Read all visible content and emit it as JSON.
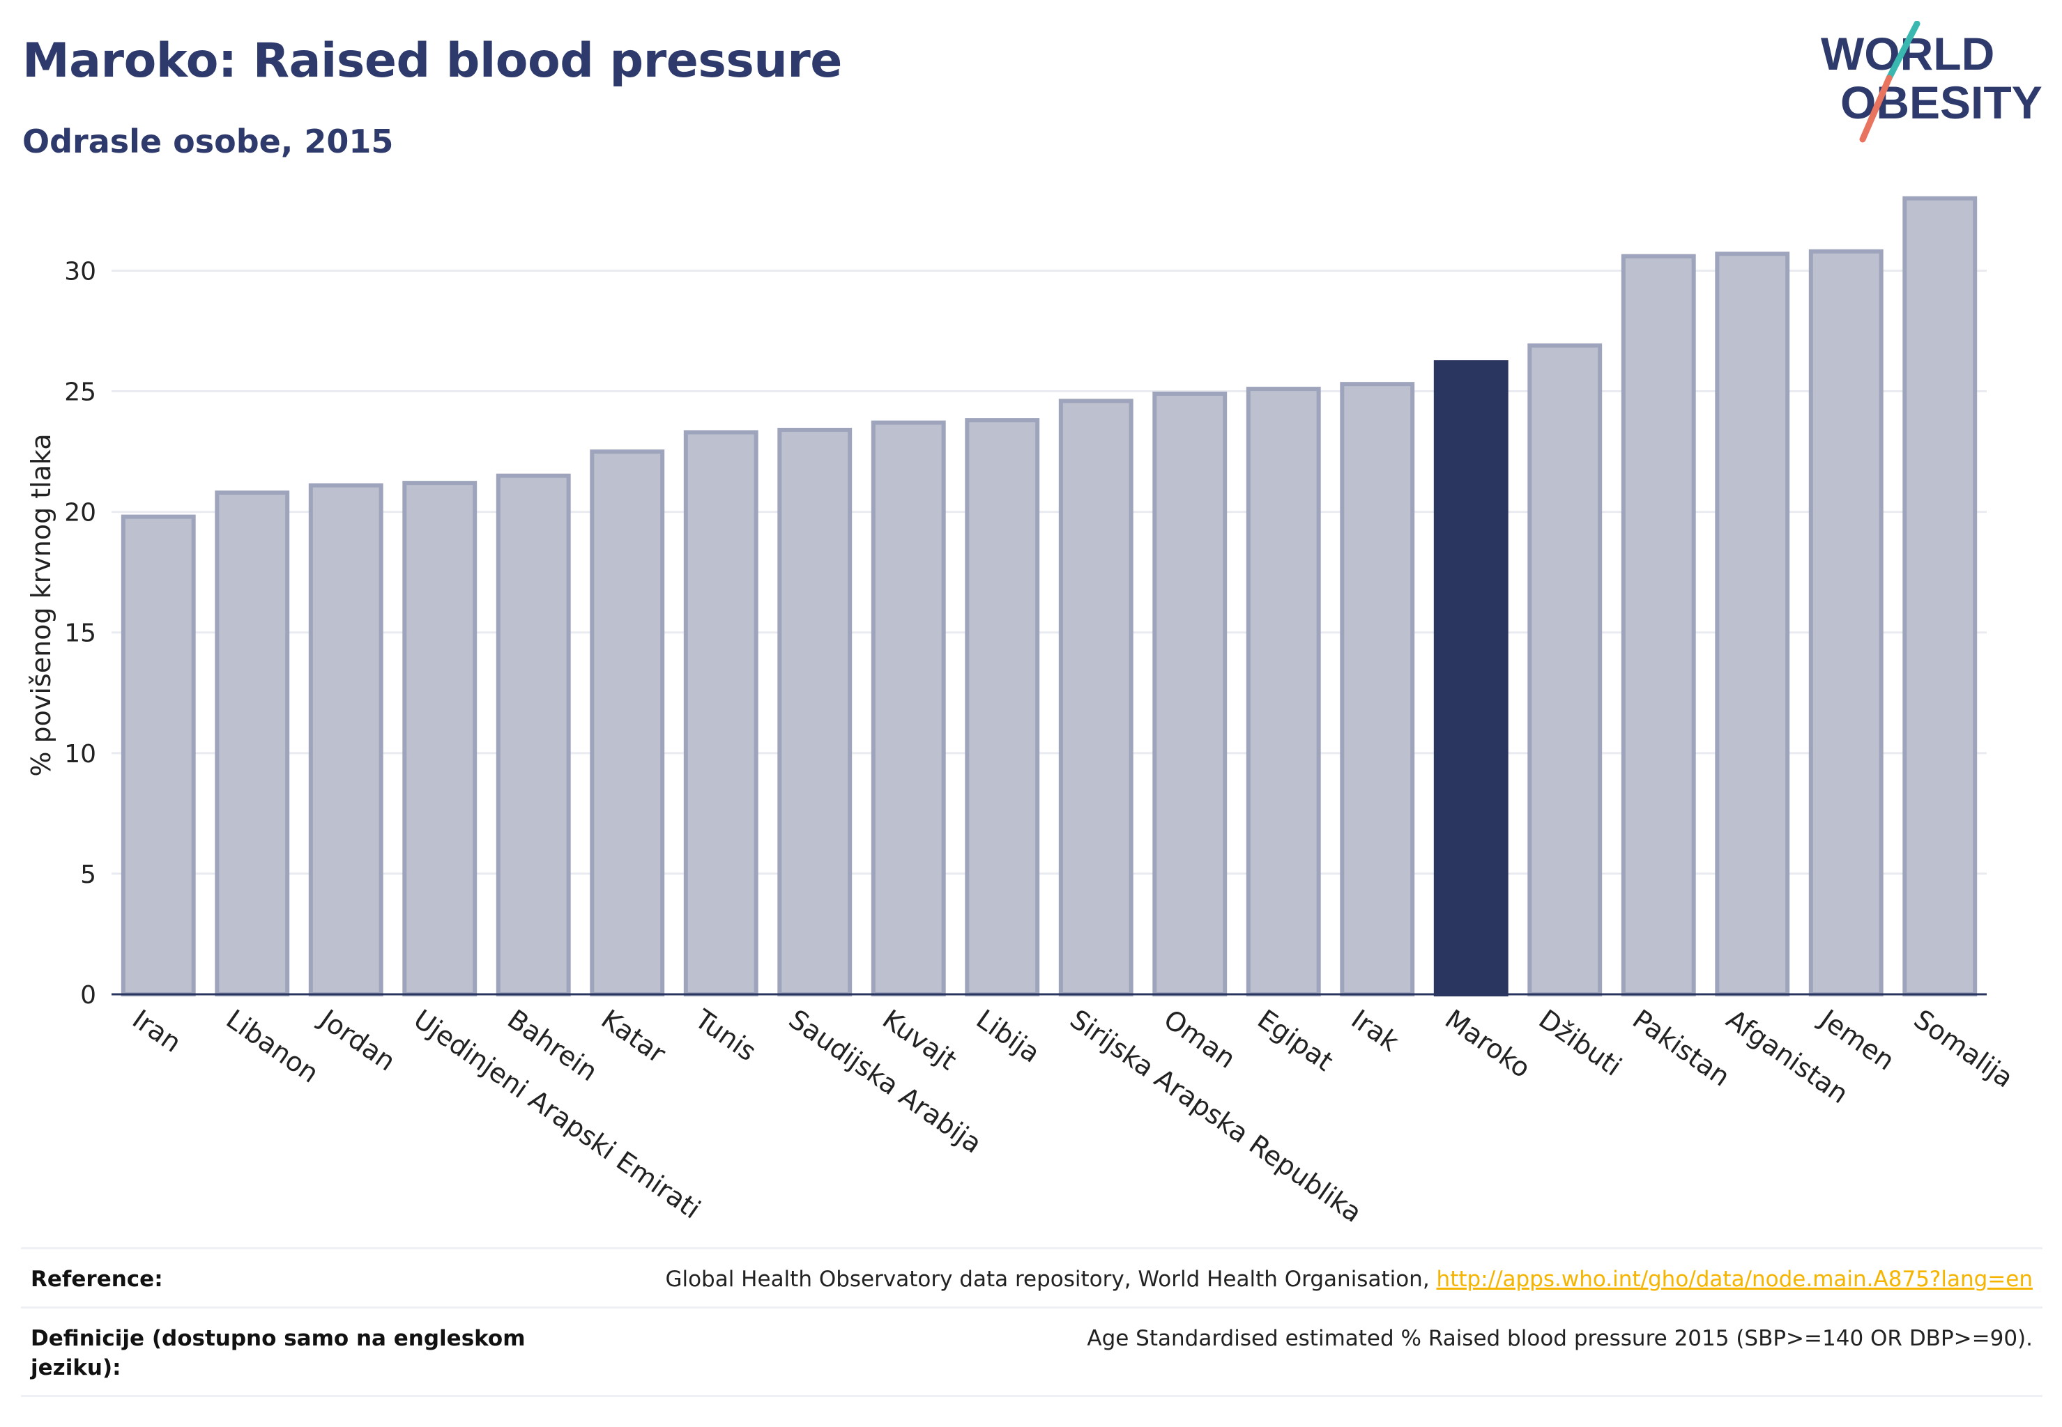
{
  "header": {
    "title": "Maroko: Raised blood pressure",
    "subtitle": "Odrasle osobe, 2015"
  },
  "logo": {
    "line1": "WORLD",
    "line2": "OBESITY",
    "colors": {
      "text": "#2d3a6b",
      "teal": "#3ab8b0",
      "coral": "#e8735f"
    }
  },
  "chart_data": {
    "type": "bar",
    "title": "Maroko: Raised blood pressure",
    "subtitle": "Odrasle osobe, 2015",
    "xlabel": "",
    "ylabel": "% povišenog krvnog tlaka",
    "ylim": [
      0,
      34
    ],
    "yticks": [
      0,
      5,
      10,
      15,
      20,
      25,
      30
    ],
    "grid": true,
    "highlight": "Maroko",
    "colors": {
      "bar": "#bcc0cf",
      "bar_border": "#9ea4bb",
      "highlight": "#2a3560",
      "grid": "#e9ebf1",
      "axis": "#2a3560"
    },
    "categories": [
      "Iran",
      "Libanon",
      "Jordan",
      "Ujedinjeni Arapski Emirati",
      "Bahrein",
      "Katar",
      "Tunis",
      "Saudijska Arabija",
      "Kuvajt",
      "Libija",
      "Sirijska Arapska Republika",
      "Oman",
      "Egipat",
      "Irak",
      "Maroko",
      "Džibuti",
      "Pakistan",
      "Afganistan",
      "Jemen",
      "Somalija"
    ],
    "values": [
      19.8,
      20.8,
      21.1,
      21.2,
      21.5,
      22.5,
      23.3,
      23.4,
      23.7,
      23.8,
      24.6,
      24.9,
      25.1,
      25.3,
      26.2,
      26.9,
      30.6,
      30.7,
      30.8,
      33.0
    ]
  },
  "footer": {
    "reference_label": "Reference:",
    "reference_text": "Global Health Observatory data repository, World Health Organisation, ",
    "reference_link": "http://apps.who.int/gho/data/node.main.A875?lang=en",
    "definition_label": "Definicije (dostupno samo na engleskom jeziku):",
    "definition_text": "Age Standardised estimated % Raised blood pressure 2015 (SBP>=140 OR DBP>=90)."
  }
}
